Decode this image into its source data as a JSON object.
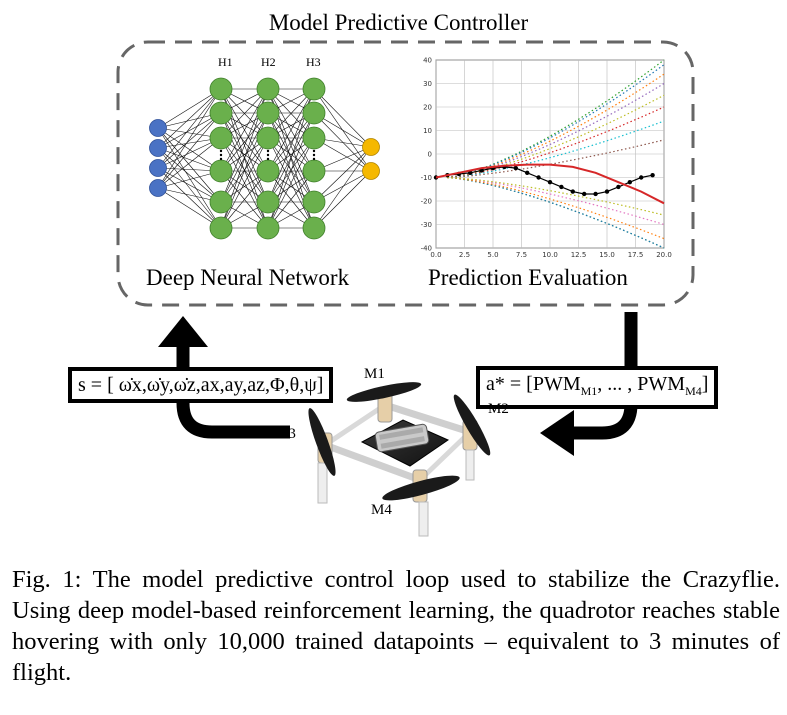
{
  "mpc_title": "Model Predictive Controller",
  "nn": {
    "title": "Deep Neural Network",
    "layer_labels": [
      "H1",
      "H2",
      "H3"
    ],
    "colors": {
      "input": "#4a72c4",
      "hidden": "#6ab04c",
      "output": "#f5b800"
    }
  },
  "prediction": {
    "title": "Prediction Evaluation"
  },
  "state_formula": "s = [ ω̇x,ω̇y,ω̇z,ax,ay,az,Φ,θ,ψ]",
  "action_formula": {
    "prefix": "a* = [PWM",
    "sub1": "M1",
    "middle": ", ... , PWM",
    "sub2": "M4",
    "suffix": "]"
  },
  "motors": [
    "M1",
    "M2",
    "M3",
    "M4"
  ],
  "caption": "Fig. 1: The model predictive control loop used to stabilize the Crazyflie. Using deep model-based reinforcement learning, the quadrotor reaches stable hovering with only 10,000 trained datapoints – equivalent to 3 minutes of flight.",
  "chart_data": {
    "type": "line",
    "title": "",
    "xlabel": "",
    "ylabel": "",
    "xlim": [
      0,
      20
    ],
    "ylim": [
      -40,
      40
    ],
    "x_ticks": [
      "0.0",
      "2.5",
      "5.0",
      "7.5",
      "10.0",
      "12.5",
      "15.0",
      "17.5",
      "20.0"
    ],
    "y_ticks": [
      "40",
      "30",
      "20",
      "10",
      "0",
      "-10",
      "-20",
      "-30",
      "-40"
    ],
    "grid": true,
    "series": [
      {
        "style": "black-markers",
        "color": "#000000",
        "x": [
          0,
          1,
          2,
          3,
          4,
          5,
          6,
          7,
          8,
          9,
          10,
          11,
          12,
          13,
          14,
          15,
          16,
          17,
          18,
          19
        ],
        "y": [
          -10,
          -9,
          -8.5,
          -8,
          -7,
          -6,
          -5.5,
          -6,
          -8,
          -10,
          -12,
          -14,
          -16,
          -17,
          -17,
          -16,
          -14,
          -12,
          -10,
          -9
        ]
      },
      {
        "style": "solid",
        "color": "#d62728",
        "x": [
          0,
          2,
          4,
          6,
          8,
          10,
          12,
          14,
          16,
          18,
          20
        ],
        "y": [
          -10,
          -8,
          -6,
          -5,
          -4.5,
          -4.5,
          -5.5,
          -8,
          -12,
          -16,
          -21
        ]
      }
    ],
    "dotted_rollouts": [
      {
        "color": "#2ca02c",
        "end_y": 40
      },
      {
        "color": "#1f77b4",
        "end_y": 38
      },
      {
        "color": "#ff7f0e",
        "end_y": 34
      },
      {
        "color": "#9467bd",
        "end_y": 30
      },
      {
        "color": "#bcbd22",
        "end_y": 25
      },
      {
        "color": "#d62728",
        "end_y": 20
      },
      {
        "color": "#17becf",
        "end_y": 14
      },
      {
        "color": "#8c564b",
        "end_y": 6
      },
      {
        "color": "#e377c2",
        "end_y": -30
      },
      {
        "color": "#2ca02c",
        "end_y": -40
      },
      {
        "color": "#1f77b4",
        "end_y": -40
      },
      {
        "color": "#ff7f0e",
        "end_y": -36
      },
      {
        "color": "#bcbd22",
        "end_y": -26
      }
    ]
  }
}
